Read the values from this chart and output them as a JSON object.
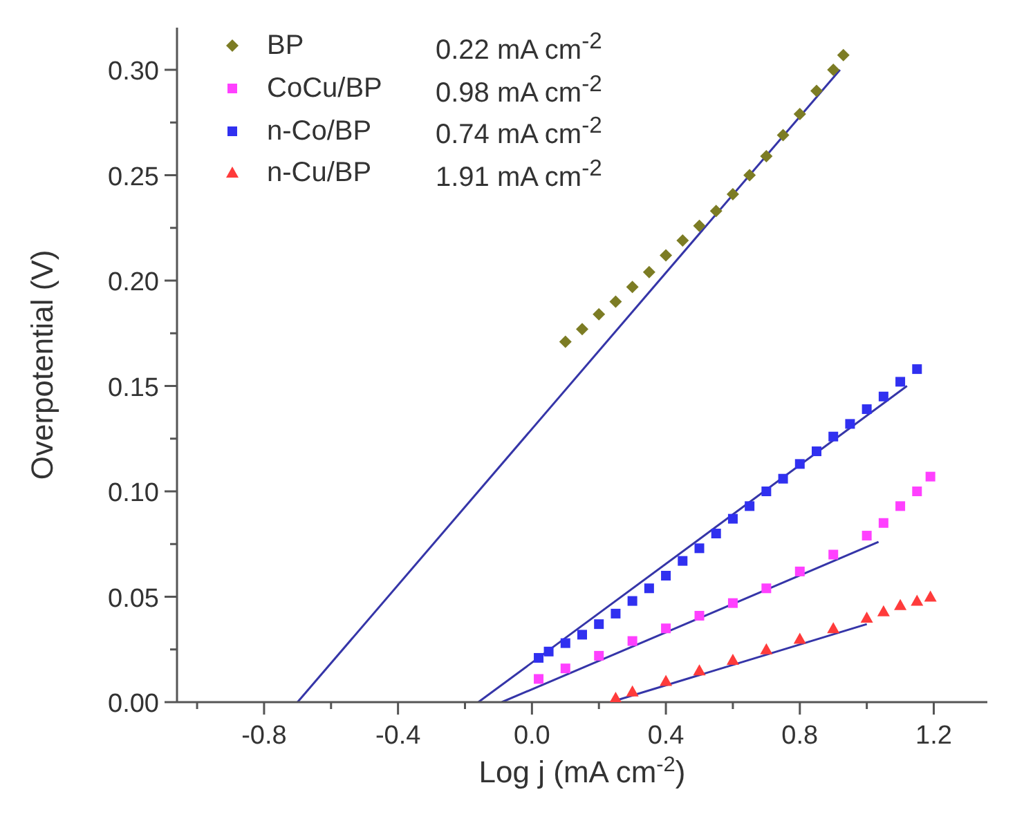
{
  "chart_data": {
    "type": "scatter",
    "xlabel": "Log j (mA cm$^{-2}$)",
    "ylabel": "Overpotential (V)",
    "xlim": [
      -1.06,
      1.36
    ],
    "ylim": [
      0,
      0.32
    ],
    "xticks": [
      {
        "value": -1.0,
        "label": null
      },
      {
        "value": -0.8,
        "label": "-0.8"
      },
      {
        "value": -0.6,
        "label": null
      },
      {
        "value": -0.4,
        "label": "-0.4"
      },
      {
        "value": -0.2,
        "label": null
      },
      {
        "value": 0,
        "label": "0.0"
      },
      {
        "value": 0.2,
        "label": null
      },
      {
        "value": 0.4,
        "label": "0.4"
      },
      {
        "value": 0.6,
        "label": null
      },
      {
        "value": 0.8,
        "label": "0.8"
      },
      {
        "value": 1.0,
        "label": null
      },
      {
        "value": 1.2,
        "label": "1.2"
      }
    ],
    "yticks": [
      {
        "value": 0,
        "label": "0.00"
      },
      {
        "value": 0.025,
        "label": null
      },
      {
        "value": 0.05,
        "label": "0.05"
      },
      {
        "value": 0.075,
        "label": null
      },
      {
        "value": 0.1,
        "label": "0.10"
      },
      {
        "value": 0.125,
        "label": null
      },
      {
        "value": 0.15,
        "label": "0.15"
      },
      {
        "value": 0.175,
        "label": null
      },
      {
        "value": 0.2,
        "label": "0.20"
      },
      {
        "value": 0.225,
        "label": null
      },
      {
        "value": 0.25,
        "label": "0.25"
      },
      {
        "value": 0.275,
        "label": null
      },
      {
        "value": 0.3,
        "label": "0.30"
      }
    ],
    "grid": false,
    "legend": "top left",
    "annotations": [
      "0.22 mA cm$^{-2}$",
      "0.98 mA cm$^{-2}$",
      "0.74 mA cm$^{-2}$",
      "1.91 mA cm$^{-2}$"
    ],
    "series": [
      {
        "type": "line",
        "color": "#3535a8",
        "marker": "none",
        "line_style": "solid",
        "x": [
          -0.7,
          0.92
        ],
        "values": [
          0,
          0.3
        ]
      },
      {
        "type": "line",
        "color": "#3535a8",
        "marker": "none",
        "line_style": "solid",
        "x": [
          -0.16,
          1.12
        ],
        "values": [
          0,
          0.15
        ]
      },
      {
        "type": "line",
        "color": "#3535a8",
        "marker": "none",
        "line_style": "solid",
        "x": [
          -0.09,
          1.035
        ],
        "values": [
          0,
          0.076
        ]
      },
      {
        "type": "line",
        "color": "#3535a8",
        "marker": "none",
        "line_style": "solid",
        "x": [
          0.235,
          1.0
        ],
        "values": [
          0,
          0.037
        ]
      },
      {
        "name": "BP",
        "color": "#7c7c24",
        "marker": "diamond",
        "x": [
          0.1,
          0.15,
          0.2,
          0.25,
          0.3,
          0.35,
          0.4,
          0.45,
          0.5,
          0.55,
          0.6,
          0.65,
          0.7,
          0.75,
          0.8,
          0.85,
          0.9,
          0.93
        ],
        "values": [
          0.171,
          0.177,
          0.184,
          0.19,
          0.197,
          0.204,
          0.212,
          0.219,
          0.226,
          0.233,
          0.241,
          0.25,
          0.259,
          0.269,
          0.279,
          0.29,
          0.3,
          0.307
        ]
      },
      {
        "name": "CoCu/BP",
        "color": "#ff40ff",
        "marker": "square",
        "x": [
          0.02,
          0.1,
          0.2,
          0.3,
          0.4,
          0.5,
          0.6,
          0.7,
          0.8,
          0.9,
          1.0,
          1.05,
          1.1,
          1.15,
          1.19
        ],
        "values": [
          0.011,
          0.016,
          0.022,
          0.029,
          0.035,
          0.041,
          0.047,
          0.054,
          0.062,
          0.07,
          0.079,
          0.085,
          0.093,
          0.1,
          0.107
        ]
      },
      {
        "name": "n-Co/BP",
        "color": "#3030f0",
        "marker": "square",
        "x": [
          0.02,
          0.05,
          0.1,
          0.15,
          0.2,
          0.25,
          0.3,
          0.35,
          0.4,
          0.45,
          0.5,
          0.55,
          0.6,
          0.65,
          0.7,
          0.75,
          0.8,
          0.85,
          0.9,
          0.95,
          1.0,
          1.05,
          1.1,
          1.15
        ],
        "values": [
          0.021,
          0.024,
          0.028,
          0.032,
          0.037,
          0.042,
          0.048,
          0.054,
          0.06,
          0.067,
          0.073,
          0.08,
          0.087,
          0.093,
          0.1,
          0.106,
          0.113,
          0.119,
          0.126,
          0.132,
          0.139,
          0.145,
          0.152,
          0.158
        ]
      },
      {
        "name": "n-Cu/BP",
        "color": "#ff3b3b",
        "marker": "triangle",
        "x": [
          0.25,
          0.3,
          0.4,
          0.5,
          0.6,
          0.7,
          0.8,
          0.9,
          1.0,
          1.05,
          1.1,
          1.15,
          1.19
        ],
        "values": [
          0.002,
          0.005,
          0.01,
          0.015,
          0.02,
          0.025,
          0.03,
          0.035,
          0.04,
          0.043,
          0.046,
          0.048,
          0.05
        ]
      }
    ]
  }
}
